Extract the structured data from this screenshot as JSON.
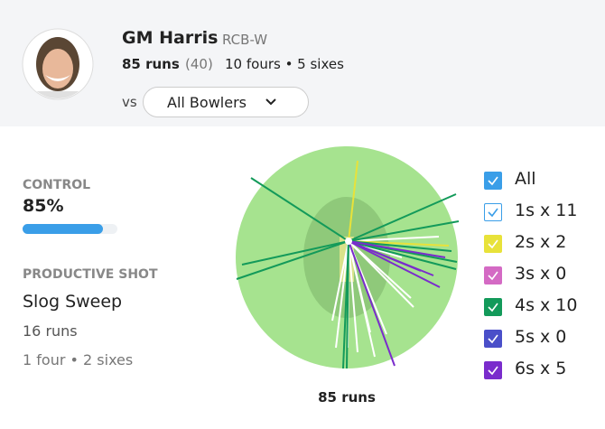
{
  "header": {
    "name": "GM Harris",
    "team": "RCB-W",
    "runs": "85 runs",
    "balls": "(40)",
    "boundaries": "10 fours • 5 sixes",
    "vs": "vs",
    "dropdown": "All Bowlers"
  },
  "stats": {
    "control_label": "CONTROL",
    "control_value": "85%",
    "shot_label": "PRODUCTIVE SHOT",
    "shot_name": "Slog Sweep",
    "shot_runs": "16 runs",
    "shot_boundaries": "1 four • 2 sixes"
  },
  "wagon_wheel": {
    "total": "85 runs",
    "legend": [
      "All",
      "1s x 11",
      "2s x 2",
      "3s x 0",
      "4s x 10",
      "5s x 0",
      "6s x 5"
    ]
  }
}
